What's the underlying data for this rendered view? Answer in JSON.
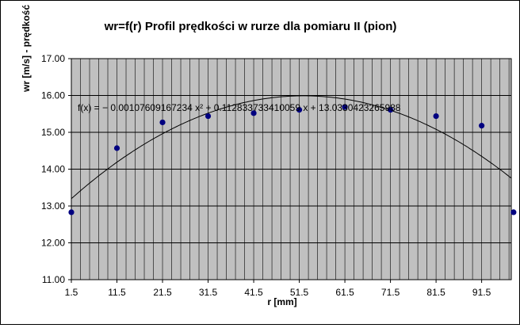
{
  "chart_data": {
    "type": "scatter",
    "title": "wr=f(r) Profil prędkości w rurze dla pomiaru II (pion)",
    "xlabel": "r [mm]",
    "ylabel": "wr [m/s] - prędkość",
    "xlim": [
      1.5,
      98
    ],
    "ylim": [
      11.0,
      17.0
    ],
    "x_ticks": [
      "1.5",
      "11.5",
      "21.5",
      "31.5",
      "41.5",
      "51.5",
      "61.5",
      "71.5",
      "81.5",
      "91.5"
    ],
    "y_ticks": [
      "11.00",
      "12.00",
      "13.00",
      "14.00",
      "15.00",
      "16.00",
      "17.00"
    ],
    "grid": true,
    "plot_background": "#c0c0c0",
    "marker_color": "#000080",
    "series": [
      {
        "x": [
          1.5,
          11.5,
          21.5,
          31.5,
          41.5,
          51.5,
          61.5,
          71.5,
          81.5,
          91.5,
          98.5
        ],
        "y": [
          12.83,
          14.57,
          15.27,
          15.44,
          15.52,
          15.61,
          15.69,
          15.61,
          15.44,
          15.18,
          12.83
        ]
      }
    ],
    "trendline": {
      "type": "polynomial",
      "a": -0.00107609167234,
      "b": 0.112833733410059,
      "c": 13.0330423265988
    },
    "trendline_label": "f(x) = − 0.00107609167234 x² + 0.112833733410059 x + 13.0330423265988"
  }
}
